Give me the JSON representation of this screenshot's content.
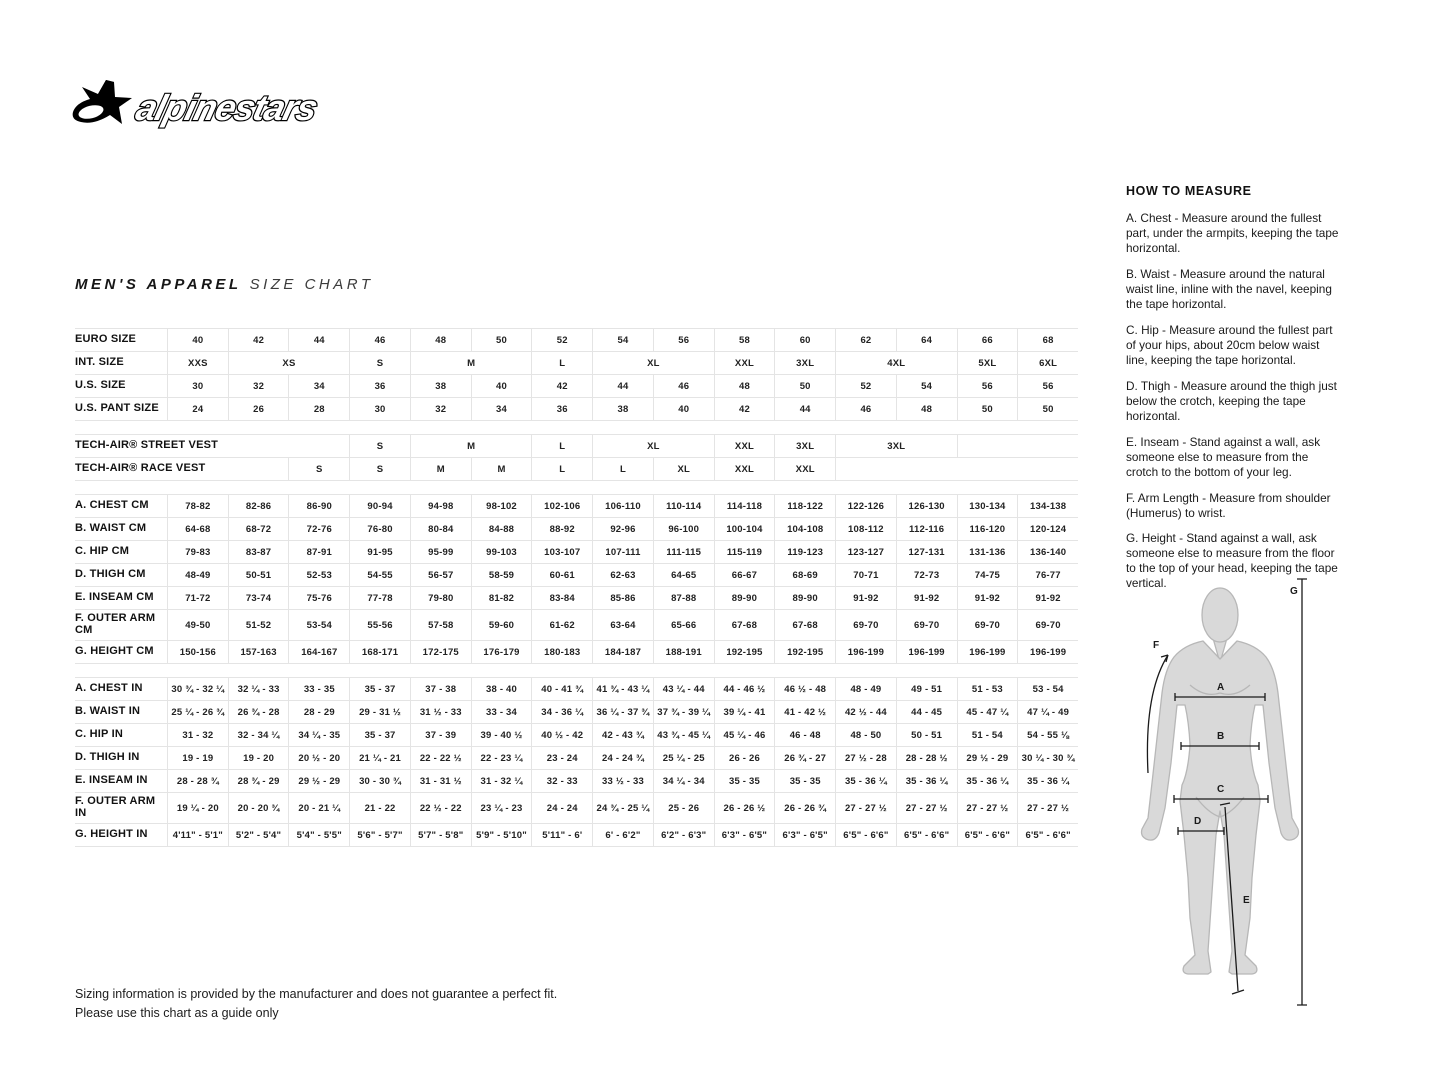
{
  "brand": {
    "wordmark": "alpinestars"
  },
  "title": {
    "main": "MEN'S APPAREL",
    "sub": "SIZE CHART"
  },
  "table": {
    "groups": [
      {
        "rows": [
          {
            "label": "EURO SIZE",
            "cells": [
              "40",
              "42",
              "44",
              "46",
              "48",
              "50",
              "52",
              "54",
              "56",
              "58",
              "60",
              "62",
              "64",
              "66",
              "68"
            ]
          },
          {
            "label": "INT. SIZE",
            "cells": [
              "XXS",
              [
                "XS",
                2
              ],
              "S",
              [
                "M",
                2
              ],
              "L",
              [
                "XL",
                2
              ],
              "XXL",
              "3XL",
              [
                "4XL",
                2
              ],
              "5XL",
              "6XL"
            ]
          },
          {
            "label": "U.S. SIZE",
            "cells": [
              "30",
              "32",
              "34",
              "36",
              "38",
              "40",
              "42",
              "44",
              "46",
              "48",
              "50",
              "52",
              "54",
              "56",
              "56"
            ]
          },
          {
            "label": "U.S. PANT SIZE",
            "cells": [
              "24",
              "26",
              "28",
              "30",
              "32",
              "34",
              "36",
              "38",
              "40",
              "42",
              "44",
              "46",
              "48",
              "50",
              "50"
            ]
          }
        ]
      },
      {
        "rows": [
          {
            "label": "TECH-AIR® STREET VEST",
            "lead": 3,
            "trail": 2,
            "cells": [
              "S",
              [
                "M",
                2
              ],
              "L",
              [
                "XL",
                2
              ],
              "XXL",
              "3XL",
              [
                "3XL",
                2
              ]
            ]
          },
          {
            "label": "TECH-AIR® RACE VEST",
            "lead": 2,
            "trail": 4,
            "cells": [
              "S",
              "S",
              "M",
              "M",
              "L",
              "L",
              "XL",
              "XXL",
              "XXL"
            ]
          }
        ]
      },
      {
        "rows": [
          {
            "label": "A. CHEST CM",
            "cells": [
              "78-82",
              "82-86",
              "86-90",
              "90-94",
              "94-98",
              "98-102",
              "102-106",
              "106-110",
              "110-114",
              "114-118",
              "118-122",
              "122-126",
              "126-130",
              "130-134",
              "134-138"
            ]
          },
          {
            "label": "B. WAIST CM",
            "cells": [
              "64-68",
              "68-72",
              "72-76",
              "76-80",
              "80-84",
              "84-88",
              "88-92",
              "92-96",
              "96-100",
              "100-104",
              "104-108",
              "108-112",
              "112-116",
              "116-120",
              "120-124"
            ]
          },
          {
            "label": "C. HIP CM",
            "cells": [
              "79-83",
              "83-87",
              "87-91",
              "91-95",
              "95-99",
              "99-103",
              "103-107",
              "107-111",
              "111-115",
              "115-119",
              "119-123",
              "123-127",
              "127-131",
              "131-136",
              "136-140"
            ]
          },
          {
            "label": "D. THIGH CM",
            "cells": [
              "48-49",
              "50-51",
              "52-53",
              "54-55",
              "56-57",
              "58-59",
              "60-61",
              "62-63",
              "64-65",
              "66-67",
              "68-69",
              "70-71",
              "72-73",
              "74-75",
              "76-77"
            ]
          },
          {
            "label": "E. INSEAM CM",
            "cells": [
              "71-72",
              "73-74",
              "75-76",
              "77-78",
              "79-80",
              "81-82",
              "83-84",
              "85-86",
              "87-88",
              "89-90",
              "89-90",
              "91-92",
              "91-92",
              "91-92",
              "91-92"
            ]
          },
          {
            "label": "F. OUTER ARM CM",
            "tall": true,
            "cells": [
              "49-50",
              "51-52",
              "53-54",
              "55-56",
              "57-58",
              "59-60",
              "61-62",
              "63-64",
              "65-66",
              "67-68",
              "67-68",
              "69-70",
              "69-70",
              "69-70",
              "69-70"
            ]
          },
          {
            "label": "G. HEIGHT CM",
            "cells": [
              "150-156",
              "157-163",
              "164-167",
              "168-171",
              "172-175",
              "176-179",
              "180-183",
              "184-187",
              "188-191",
              "192-195",
              "192-195",
              "196-199",
              "196-199",
              "196-199",
              "196-199"
            ]
          }
        ]
      },
      {
        "rows": [
          {
            "label": "A. CHEST IN",
            "cells": [
              "30 ¾ - 32 ¼",
              "32 ¼ - 33",
              "33 - 35",
              "35 - 37",
              "37 - 38",
              "38 - 40",
              "40 - 41 ¾",
              "41 ¾ - 43 ¼",
              "43 ¼ - 44",
              "44 - 46 ½",
              "46 ½ - 48",
              "48 - 49",
              "49 - 51",
              "51 - 53",
              "53 - 54"
            ]
          },
          {
            "label": "B. WAIST IN",
            "cells": [
              "25 ¼ - 26 ¾",
              "26 ¾ - 28",
              "28 - 29",
              "29 - 31 ½",
              "31 ½ - 33",
              "33 - 34",
              "34 - 36 ¼",
              "36 ¼ - 37 ¾",
              "37 ¾ - 39 ¼",
              "39 ¼ - 41",
              "41 - 42 ½",
              "42 ½ - 44",
              "44 - 45",
              "45 - 47 ¼",
              "47 ¼ - 49"
            ]
          },
          {
            "label": "C. HIP IN",
            "cells": [
              "31 - 32",
              "32 - 34 ¼",
              "34 ¼ - 35",
              "35 - 37",
              "37 - 39",
              "39 - 40 ½",
              "40 ½ - 42",
              "42 - 43 ¾",
              "43 ¾ - 45 ¼",
              "45 ¼ - 46",
              "46 - 48",
              "48 - 50",
              "50 - 51",
              "51 - 54",
              "54 - 55 ⅛"
            ]
          },
          {
            "label": "D. THIGH IN",
            "cells": [
              "19 - 19",
              "19 - 20",
              "20 ½ - 20",
              "21 ¼ - 21",
              "22 - 22 ½",
              "22 - 23 ¼",
              "23 - 24",
              "24 - 24 ¾",
              "25 ¼ - 25",
              "26 - 26",
              "26 ¾ - 27",
              "27 ½ - 28",
              "28 - 28 ½",
              "29 ½ - 29",
              "30 ¼ - 30 ¾"
            ]
          },
          {
            "label": "E. INSEAM IN",
            "cells": [
              "28 - 28 ¾",
              "28 ¾ - 29",
              "29 ½ - 29",
              "30 - 30 ¾",
              "31 - 31 ½",
              "31 - 32 ¼",
              "32 - 33",
              "33 ½ - 33",
              "34 ¼ - 34",
              "35 - 35",
              "35 - 35",
              "35 - 36 ¼",
              "35 - 36 ¼",
              "35 - 36 ¼",
              "35 - 36 ¼"
            ]
          },
          {
            "label": "F. OUTER ARM IN",
            "tall": true,
            "cells": [
              "19 ¼ - 20",
              "20 - 20 ¾",
              "20 - 21 ¼",
              "21 - 22",
              "22 ½ - 22",
              "23 ¼ - 23",
              "24 - 24",
              "24 ¾ - 25 ¼",
              "25 - 26",
              "26 - 26 ½",
              "26 - 26 ¾",
              "27 - 27 ½",
              "27 - 27 ½",
              "27 - 27 ½",
              "27 - 27 ½"
            ]
          },
          {
            "label": "G. HEIGHT IN",
            "cells": [
              "4'11\" - 5'1\"",
              "5'2\" - 5'4\"",
              "5'4\" - 5'5\"",
              "5'6\" - 5'7\"",
              "5'7\" - 5'8\"",
              "5'9\" - 5'10\"",
              "5'11\" - 6'",
              "6' - 6'2\"",
              "6'2\" - 6'3\"",
              "6'3\" - 6'5\"",
              "6'3\" - 6'5\"",
              "6'5\" - 6'6\"",
              "6'5\" - 6'6\"",
              "6'5\" - 6'6\"",
              "6'5\" - 6'6\""
            ]
          }
        ]
      }
    ]
  },
  "measure": {
    "heading": "HOW TO MEASURE",
    "items": [
      "A. Chest - Measure around the fullest part, under the armpits, keeping the tape horizontal.",
      "B. Waist - Measure around the natural waist line, inline with the navel, keeping the tape horizontal.",
      "C. Hip - Measure around the fullest part of your hips, about 20cm below waist line, keeping the tape horizontal.",
      "D. Thigh - Measure around the thigh just below the crotch, keeping the tape horizontal.",
      "E. Inseam - Stand against a wall, ask someone else to measure from the crotch to the bottom of your leg.",
      "F. Arm Length - Measure from shoulder (Humerus) to wrist.",
      "G. Height - Stand against a wall, ask someone else to measure from the floor to the top of your head, keeping the tape vertical."
    ]
  },
  "diagram": {
    "labels": {
      "a": "A",
      "b": "B",
      "c": "C",
      "d": "D",
      "e": "E",
      "f": "F",
      "g": "G"
    }
  },
  "footnote": {
    "line1": "Sizing information is provided by the manufacturer and does not guarantee a perfect fit.",
    "line2": "Please use this chart as a guide only"
  },
  "colors": {
    "text": "#1b1b1b",
    "grid_line": "#e4e4e4",
    "silhouette_fill": "#d9d9d9",
    "silhouette_stroke": "#b7b7b7"
  }
}
